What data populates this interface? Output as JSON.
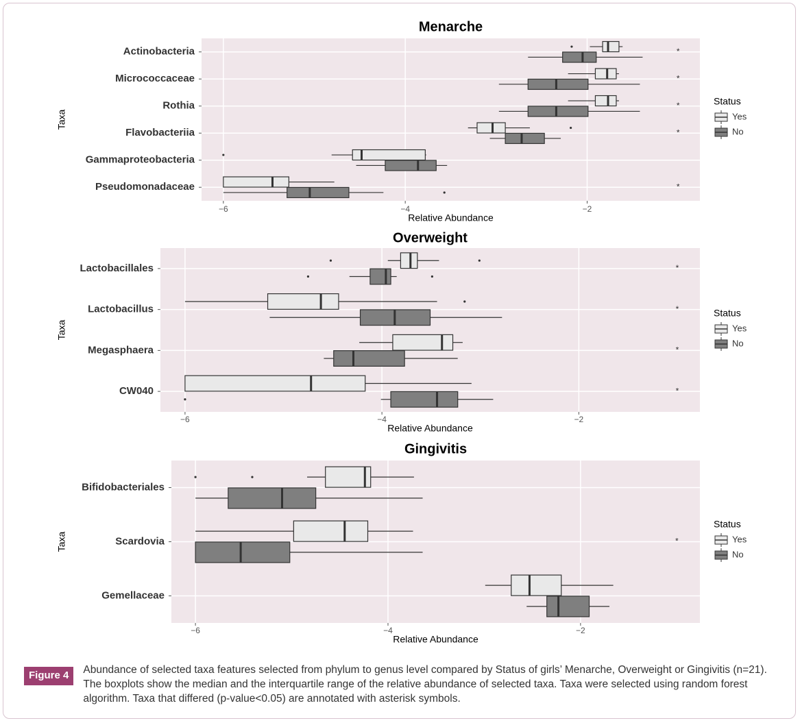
{
  "chart_data": [
    {
      "type": "boxplot",
      "title": "Menarche",
      "x_label": "Relative Abundance",
      "y_label": "Taxa",
      "legend_title": "Status",
      "grid": true,
      "categories": [
        "Actinobacteria",
        "Micrococcaceae",
        "Rothia",
        "Flavobacteriia",
        "Gammaproteobacteria",
        "Pseudomonadaceae"
      ],
      "xlim": [
        -6.24,
        -0.76
      ],
      "xticks": [
        {
          "value": -6,
          "label": "−6"
        },
        {
          "value": -4,
          "label": "−4"
        },
        {
          "value": -2,
          "label": "−2"
        }
      ],
      "series": [
        {
          "name": "Yes",
          "color": "#e9e9e9",
          "values": [
            {
              "whislo": -1.97,
              "q1": -1.83,
              "med": -1.77,
              "q3": -1.65,
              "whishi": -1.61,
              "fliers": [
                -2.17
              ]
            },
            {
              "whislo": -2.21,
              "q1": -1.91,
              "med": -1.78,
              "q3": -1.68,
              "whishi": -1.65,
              "fliers": []
            },
            {
              "whislo": -2.21,
              "q1": -1.91,
              "med": -1.77,
              "q3": -1.68,
              "whishi": -1.65,
              "fliers": []
            },
            {
              "whislo": -3.31,
              "q1": -3.21,
              "med": -3.04,
              "q3": -2.9,
              "whishi": -2.63,
              "fliers": [
                -2.18
              ]
            },
            {
              "whislo": -4.81,
              "q1": -4.58,
              "med": -4.48,
              "q3": -3.78,
              "whishi": -3.77,
              "fliers": [
                -6.0
              ]
            },
            {
              "whislo": -6.0,
              "q1": -6.0,
              "med": -5.46,
              "q3": -5.28,
              "whishi": -4.78,
              "fliers": []
            }
          ]
        },
        {
          "name": "No",
          "color": "#7f7f7f",
          "values": [
            {
              "whislo": -2.65,
              "q1": -2.27,
              "med": -2.05,
              "q3": -1.9,
              "whishi": -1.39,
              "fliers": []
            },
            {
              "whislo": -2.97,
              "q1": -2.65,
              "med": -2.34,
              "q3": -1.99,
              "whishi": -1.42,
              "fliers": []
            },
            {
              "whislo": -2.97,
              "q1": -2.65,
              "med": -2.34,
              "q3": -1.99,
              "whishi": -1.42,
              "fliers": []
            },
            {
              "whislo": -3.07,
              "q1": -2.9,
              "med": -2.72,
              "q3": -2.47,
              "whishi": -2.29,
              "fliers": []
            },
            {
              "whislo": -4.54,
              "q1": -4.22,
              "med": -3.86,
              "q3": -3.66,
              "whishi": -3.54,
              "fliers": []
            },
            {
              "whislo": -6.0,
              "q1": -5.3,
              "med": -5.05,
              "q3": -4.62,
              "whishi": -4.24,
              "fliers": [
                -3.57
              ]
            }
          ]
        }
      ],
      "annotations": [
        {
          "text": "*",
          "x": -1,
          "category": "Actinobacteria"
        },
        {
          "text": "*",
          "x": -1,
          "category": "Micrococcaceae"
        },
        {
          "text": "*",
          "x": -1,
          "category": "Rothia"
        },
        {
          "text": "*",
          "x": -1,
          "category": "Flavobacteriia"
        },
        {
          "text": "*",
          "x": -1,
          "category": "Pseudomonadaceae"
        }
      ]
    },
    {
      "type": "boxplot",
      "title": "Overweight",
      "x_label": "Relative Abundance",
      "y_label": "Taxa",
      "legend_title": "Status",
      "grid": true,
      "categories": [
        "Lactobacillales",
        "Lactobacillus",
        "Megasphaera",
        "CW040"
      ],
      "xlim": [
        -6.25,
        -0.77
      ],
      "xticks": [
        {
          "value": -6,
          "label": "−6"
        },
        {
          "value": -4,
          "label": "−4"
        },
        {
          "value": -2,
          "label": "−2"
        }
      ],
      "series": [
        {
          "name": "Yes",
          "color": "#e9e9e9",
          "values": [
            {
              "whislo": -3.94,
              "q1": -3.81,
              "med": -3.71,
              "q3": -3.64,
              "whishi": -3.42,
              "fliers": [
                -4.52,
                -3.01
              ]
            },
            {
              "whislo": -6.0,
              "q1": -5.16,
              "med": -4.62,
              "q3": -4.44,
              "whishi": -3.44,
              "fliers": [
                -3.16
              ]
            },
            {
              "whislo": -4.23,
              "q1": -3.89,
              "med": -3.39,
              "q3": -3.28,
              "whishi": -3.18,
              "fliers": []
            },
            {
              "whislo": -6.0,
              "q1": -6.0,
              "med": -4.72,
              "q3": -4.17,
              "whishi": -3.09,
              "fliers": []
            }
          ]
        },
        {
          "name": "No",
          "color": "#7f7f7f",
          "values": [
            {
              "whislo": -4.33,
              "q1": -4.12,
              "med": -3.96,
              "q3": -3.91,
              "whishi": -3.85,
              "fliers": [
                -4.75,
                -3.49
              ]
            },
            {
              "whislo": -5.14,
              "q1": -4.22,
              "med": -3.87,
              "q3": -3.51,
              "whishi": -2.78,
              "fliers": []
            },
            {
              "whislo": -4.59,
              "q1": -4.49,
              "med": -4.29,
              "q3": -3.77,
              "whishi": -3.23,
              "fliers": []
            },
            {
              "whislo": -4.01,
              "q1": -3.91,
              "med": -3.44,
              "q3": -3.23,
              "whishi": -2.87,
              "fliers": [
                -6.0
              ]
            }
          ]
        }
      ],
      "annotations": [
        {
          "text": "*",
          "x": -1,
          "category": "Lactobacillales"
        },
        {
          "text": "*",
          "x": -1,
          "category": "Lactobacillus"
        },
        {
          "text": "*",
          "x": -1,
          "category": "Megasphaera"
        },
        {
          "text": "*",
          "x": -1,
          "category": "CW040"
        }
      ]
    },
    {
      "type": "boxplot",
      "title": "Gingivitis",
      "x_label": "Relative Abundance",
      "y_label": "Taxa",
      "legend_title": "Status",
      "grid": true,
      "categories": [
        "Bifidobacteriales",
        "Scardovia",
        "Gemellaceae"
      ],
      "xlim": [
        -6.25,
        -0.76
      ],
      "xticks": [
        {
          "value": -6,
          "label": "−6"
        },
        {
          "value": -4,
          "label": "−4"
        },
        {
          "value": -2,
          "label": "−2"
        }
      ],
      "series": [
        {
          "name": "Yes",
          "color": "#e9e9e9",
          "values": [
            {
              "whislo": -4.84,
              "q1": -4.65,
              "med": -4.24,
              "q3": -4.18,
              "whishi": -3.73,
              "fliers": [
                -6.0,
                -5.41
              ]
            },
            {
              "whislo": -6.0,
              "q1": -4.98,
              "med": -4.45,
              "q3": -4.21,
              "whishi": -3.74,
              "fliers": []
            },
            {
              "whislo": -2.99,
              "q1": -2.72,
              "med": -2.53,
              "q3": -2.2,
              "whishi": -1.66,
              "fliers": []
            }
          ]
        },
        {
          "name": "No",
          "color": "#7f7f7f",
          "values": [
            {
              "whislo": -6.0,
              "q1": -5.66,
              "med": -5.1,
              "q3": -4.75,
              "whishi": -3.64,
              "fliers": []
            },
            {
              "whislo": -6.0,
              "q1": -6.0,
              "med": -5.53,
              "q3": -5.02,
              "whishi": -3.64,
              "fliers": []
            },
            {
              "whislo": -2.56,
              "q1": -2.35,
              "med": -2.23,
              "q3": -1.91,
              "whishi": -1.7,
              "fliers": []
            }
          ]
        }
      ],
      "annotations": [
        {
          "text": "*",
          "x": -1,
          "category": "Scardovia"
        }
      ]
    }
  ],
  "figure_label": "Figure 4",
  "caption": "Abundance of selected taxa features selected from phylum to genus level compared by Status of girls’ Menarche, Overweight or Gingivitis (n=21). The boxplots show the median and the interquartile range of the relative abundance of selected taxa. Taxa were selected using random forest algorithm. Taxa that differed (p-value<0.05) are annotated with asterisk symbols."
}
